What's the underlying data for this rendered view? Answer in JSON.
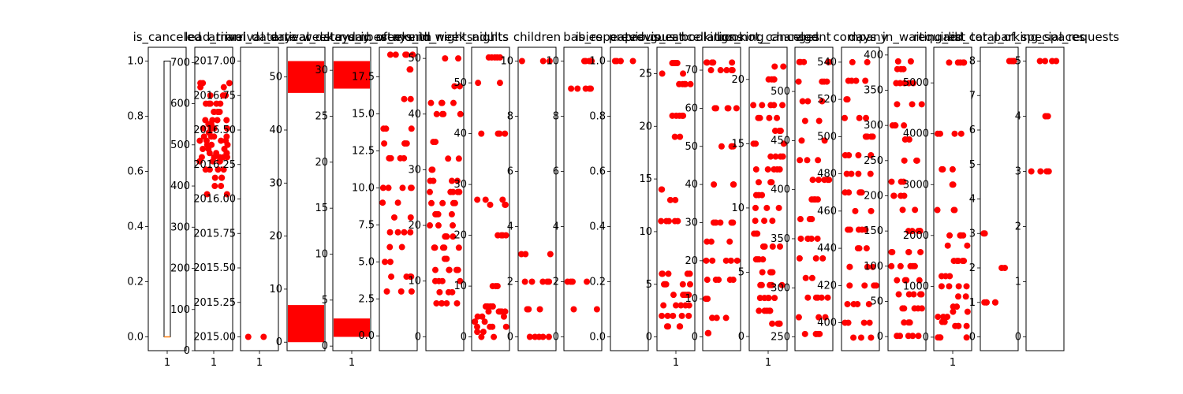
{
  "chart_data": {
    "type": "scatter",
    "panels": [
      {
        "title": "is_canceled",
        "kind": "box",
        "ylim": [
          -0.05,
          1.05
        ],
        "yticks": [
          "0.0",
          "0.2",
          "0.4",
          "0.6",
          "0.8",
          "1.0"
        ],
        "ytick_values": [
          0.0,
          0.2,
          0.4,
          0.6,
          0.8,
          1.0
        ],
        "xticks": [
          "1"
        ],
        "box": {
          "q1": 0.0,
          "median": 0.0,
          "q3": 1.0,
          "whisker_low": 0.0,
          "whisker_high": 1.0
        }
      },
      {
        "title": "lead_time",
        "kind": "scatter",
        "ylim": [
          0,
          737
        ],
        "yticks": [
          "0",
          "100",
          "200",
          "300",
          "400",
          "500",
          "600",
          "700"
        ],
        "ytick_values": [
          0,
          100,
          200,
          300,
          400,
          500,
          600,
          700
        ],
        "xticks": [
          "1"
        ],
        "outliers": [
          380,
          400,
          420,
          440,
          460,
          470,
          480,
          490,
          500,
          510,
          520,
          530,
          540,
          550,
          560,
          580,
          600,
          620,
          640,
          650
        ]
      },
      {
        "title": "arrival_date_year",
        "kind": "scatter",
        "ylim": [
          2014.9,
          2017.1
        ],
        "yticks": [
          "2015.00",
          "2015.25",
          "2015.50",
          "2015.75",
          "2016.00",
          "2016.25",
          "2016.50",
          "2016.75",
          "2017.00"
        ],
        "ytick_values": [
          2015.0,
          2015.25,
          2015.5,
          2015.75,
          2016.0,
          2016.25,
          2016.5,
          2016.75,
          2017.0
        ],
        "xticks": [
          "1"
        ],
        "outliers": [
          2015.0
        ]
      },
      {
        "title": "arrival_date_week_number",
        "kind": "scatter",
        "ylim": [
          -1.6,
          55.6
        ],
        "yticks": [
          "0",
          "10",
          "20",
          "30",
          "40",
          "50"
        ],
        "ytick_values": [
          0,
          10,
          20,
          30,
          40,
          50
        ],
        "xticks": [],
        "bands": [
          [
            0,
            7
          ],
          [
            47,
            53
          ]
        ]
      },
      {
        "title": "arrival_date_day_of_month",
        "kind": "scatter",
        "ylim": [
          -0.5,
          32.5
        ],
        "yticks": [
          "0",
          "5",
          "10",
          "15",
          "20",
          "25",
          "30"
        ],
        "ytick_values": [
          0,
          5,
          10,
          15,
          20,
          25,
          30
        ],
        "xticks": [
          "1"
        ],
        "bands": [
          [
            1,
            3
          ],
          [
            28,
            31
          ]
        ]
      },
      {
        "title": "stays_in_weekend_nights",
        "kind": "scatter",
        "ylim": [
          -1,
          19.5
        ],
        "yticks": [
          "0.0",
          "2.5",
          "5.0",
          "7.5",
          "10.0",
          "12.5",
          "15.0",
          "17.5"
        ],
        "ytick_values": [
          0,
          2.5,
          5,
          7.5,
          10,
          12.5,
          15,
          17.5
        ],
        "xticks": [],
        "outliers": [
          3,
          4,
          5,
          6,
          7,
          8,
          9,
          10,
          12,
          13,
          14,
          16,
          18,
          19
        ]
      },
      {
        "title": "stays_in_week_nights",
        "kind": "scatter",
        "ylim": [
          -2.5,
          52
        ],
        "yticks": [
          "0",
          "10",
          "20",
          "30",
          "40",
          "50"
        ],
        "ytick_values": [
          0,
          10,
          20,
          30,
          40,
          50
        ],
        "xticks": [],
        "outliers": [
          6,
          8,
          10,
          12,
          14,
          16,
          18,
          20,
          22,
          24,
          26,
          28,
          30,
          32,
          35,
          40,
          42,
          45,
          50
        ]
      },
      {
        "title": "adults",
        "kind": "scatter",
        "ylim": [
          -2.7,
          57
        ],
        "yticks": [
          "0",
          "10",
          "20",
          "30",
          "40",
          "50"
        ],
        "ytick_values": [
          0,
          10,
          20,
          30,
          40,
          50
        ],
        "xticks": [],
        "outliers": [
          0,
          1,
          2,
          3,
          4,
          5,
          6,
          10,
          20,
          26,
          27,
          40,
          50,
          55
        ]
      },
      {
        "title": "children",
        "kind": "scatter",
        "ylim": [
          -0.5,
          10.5
        ],
        "yticks": [
          "0",
          "2",
          "4",
          "6",
          "8",
          "10"
        ],
        "ytick_values": [
          0,
          2,
          4,
          6,
          8,
          10
        ],
        "xticks": [],
        "outliers": [
          0,
          1,
          2,
          3,
          10
        ]
      },
      {
        "title": "babies",
        "kind": "scatter",
        "ylim": [
          -0.5,
          10.5
        ],
        "yticks": [
          "0",
          "2",
          "4",
          "6",
          "8",
          "10"
        ],
        "ytick_values": [
          0,
          2,
          4,
          6,
          8,
          10
        ],
        "xticks": [],
        "outliers": [
          1,
          2,
          9,
          10
        ]
      },
      {
        "title": "is_repeated_guest",
        "kind": "scatter",
        "ylim": [
          -0.05,
          1.05
        ],
        "yticks": [
          "0.0",
          "0.2",
          "0.4",
          "0.6",
          "0.8",
          "1.0"
        ],
        "ytick_values": [
          0,
          0.2,
          0.4,
          0.6,
          0.8,
          1.0
        ],
        "xticks": [],
        "outliers": [
          1.0
        ]
      },
      {
        "title": "previous_cancellations",
        "kind": "scatter",
        "ylim": [
          -1.3,
          27.5
        ],
        "yticks": [
          "0",
          "5",
          "10",
          "15",
          "20",
          "25"
        ],
        "ytick_values": [
          0,
          5,
          10,
          15,
          20,
          25
        ],
        "xticks": [
          "1"
        ],
        "outliers": [
          1,
          2,
          3,
          4,
          5,
          6,
          11,
          13,
          14,
          19,
          21,
          24,
          25,
          26
        ]
      },
      {
        "title": "previous_bookings_not_canceled",
        "kind": "scatter",
        "ylim": [
          -3.6,
          76
        ],
        "yticks": [
          "0",
          "10",
          "20",
          "30",
          "40",
          "50",
          "60",
          "70"
        ],
        "ytick_values": [
          0,
          10,
          20,
          30,
          40,
          50,
          60,
          70
        ],
        "xticks": [],
        "outliers": [
          1,
          5,
          10,
          15,
          20,
          25,
          30,
          40,
          50,
          60,
          70,
          72
        ]
      },
      {
        "title": "booking_changes",
        "kind": "scatter",
        "ylim": [
          -1.1,
          22.5
        ],
        "yticks": [
          "0",
          "5",
          "10",
          "15",
          "20"
        ],
        "ytick_values": [
          0,
          5,
          10,
          15,
          20
        ],
        "xticks": [
          "1"
        ],
        "outliers": [
          1,
          2,
          3,
          4,
          5,
          6,
          7,
          8,
          9,
          10,
          11,
          12,
          13,
          14,
          15,
          16,
          17,
          18,
          20,
          21
        ]
      },
      {
        "title": "agent",
        "kind": "scatter",
        "ylim": [
          236,
          545
        ],
        "yticks": [
          "250",
          "300",
          "350",
          "400",
          "450",
          "500"
        ],
        "ytick_values": [
          250,
          300,
          350,
          400,
          450,
          500
        ],
        "xticks": [],
        "outliers": [
          253,
          270,
          290,
          310,
          330,
          350,
          370,
          390,
          410,
          430,
          450,
          470,
          490,
          510,
          530
        ]
      },
      {
        "title": "company",
        "kind": "scatter",
        "ylim": [
          385,
          548
        ],
        "yticks": [
          "400",
          "420",
          "440",
          "460",
          "480",
          "500",
          "520",
          "540"
        ],
        "ytick_values": [
          400,
          420,
          440,
          460,
          480,
          500,
          520,
          540
        ],
        "xticks": [],
        "outliers": [
          392,
          400,
          410,
          420,
          430,
          440,
          450,
          460,
          470,
          480,
          490,
          500,
          510,
          520,
          530,
          540
        ]
      },
      {
        "title": "days_in_waiting_list",
        "kind": "scatter",
        "ylim": [
          -20,
          411
        ],
        "yticks": [
          "0",
          "50",
          "100",
          "150",
          "200",
          "250",
          "300",
          "350",
          "400"
        ],
        "ytick_values": [
          0,
          50,
          100,
          150,
          200,
          250,
          300,
          350,
          400
        ],
        "xticks": [],
        "outliers": [
          1,
          20,
          40,
          60,
          80,
          100,
          120,
          150,
          180,
          200,
          220,
          250,
          280,
          300,
          330,
          360,
          380,
          391
        ]
      },
      {
        "title": "adr",
        "kind": "scatter",
        "ylim": [
          -265,
          5700
        ],
        "yticks": [
          "0",
          "1000",
          "2000",
          "3000",
          "4000",
          "5000"
        ],
        "ytick_values": [
          0,
          1000,
          2000,
          3000,
          4000,
          5000
        ],
        "xticks": [
          "1"
        ],
        "outliers": [
          -6,
          220,
          300,
          400,
          500,
          600,
          800,
          1000,
          1200,
          1500,
          1800,
          2000,
          2500,
          3000,
          3300,
          4000,
          5400
        ]
      },
      {
        "title": "required_car_parking_spaces",
        "kind": "scatter",
        "ylim": [
          -0.4,
          8.4
        ],
        "yticks": [
          "0",
          "1",
          "2",
          "3",
          "4",
          "5",
          "6",
          "7",
          "8"
        ],
        "ytick_values": [
          0,
          1,
          2,
          3,
          4,
          5,
          6,
          7,
          8
        ],
        "xticks": [],
        "outliers": [
          1,
          2,
          3,
          8
        ]
      },
      {
        "title": "total_of_special_requests",
        "kind": "scatter",
        "ylim": [
          -0.25,
          5.25
        ],
        "yticks": [
          "0",
          "1",
          "2",
          "3",
          "4",
          "5"
        ],
        "ytick_values": [
          0,
          1,
          2,
          3,
          4,
          5
        ],
        "xticks": [],
        "outliers": [
          3,
          4,
          5
        ]
      }
    ]
  }
}
